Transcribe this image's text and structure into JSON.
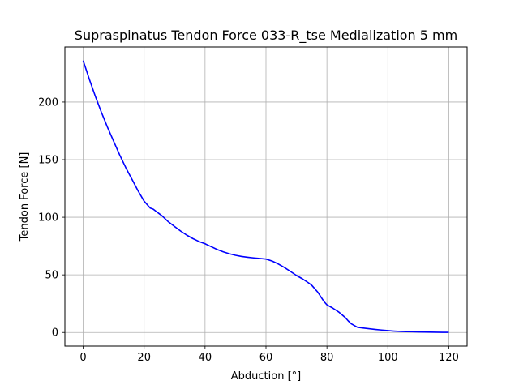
{
  "chart_data": {
    "type": "line",
    "title": "Supraspinatus Tendon Force 033-R_tse Medialization 5 mm",
    "xlabel": "Abduction [°]",
    "ylabel": "Tendon Force [N]",
    "xlim": [
      -6,
      126
    ],
    "ylim": [
      -11.8,
      247.8
    ],
    "xticks": [
      0,
      20,
      40,
      60,
      80,
      100,
      120
    ],
    "yticks": [
      0,
      50,
      100,
      150,
      200
    ],
    "grid": true,
    "line_color": "#0000ff",
    "grid_color": "#b0b0b0",
    "series": [
      {
        "x": [
          0,
          2,
          4,
          6,
          8,
          10,
          12,
          14,
          16,
          18,
          20,
          22,
          23,
          24,
          25,
          26,
          28,
          30,
          32,
          34,
          36,
          38,
          40,
          42,
          44,
          46,
          48,
          50,
          52,
          54,
          56,
          58,
          60,
          62,
          64,
          66,
          68,
          70,
          72,
          74,
          75,
          76,
          77,
          78,
          79,
          80,
          82,
          84,
          86,
          87,
          88,
          89,
          90,
          92,
          94,
          96,
          98,
          100,
          102,
          104,
          106,
          108,
          110,
          112,
          114,
          116,
          118,
          120
        ],
        "y": [
          236,
          220,
          205,
          191,
          178,
          166,
          154,
          143,
          133,
          123,
          114,
          108,
          107,
          105,
          103,
          101,
          96,
          92,
          88,
          84.5,
          81.5,
          79,
          77,
          74.5,
          72,
          70,
          68.3,
          67,
          66,
          65.3,
          64.7,
          64.2,
          63.7,
          62,
          59.5,
          56.5,
          53,
          49.5,
          46.5,
          43,
          41,
          38,
          35,
          31,
          27,
          24,
          21,
          17.5,
          13,
          10,
          7.5,
          6,
          4.5,
          3.8,
          3.2,
          2.6,
          2.1,
          1.6,
          1.2,
          0.9,
          0.7,
          0.6,
          0.5,
          0.4,
          0.3,
          0.2,
          0.1,
          0.1
        ]
      }
    ]
  }
}
